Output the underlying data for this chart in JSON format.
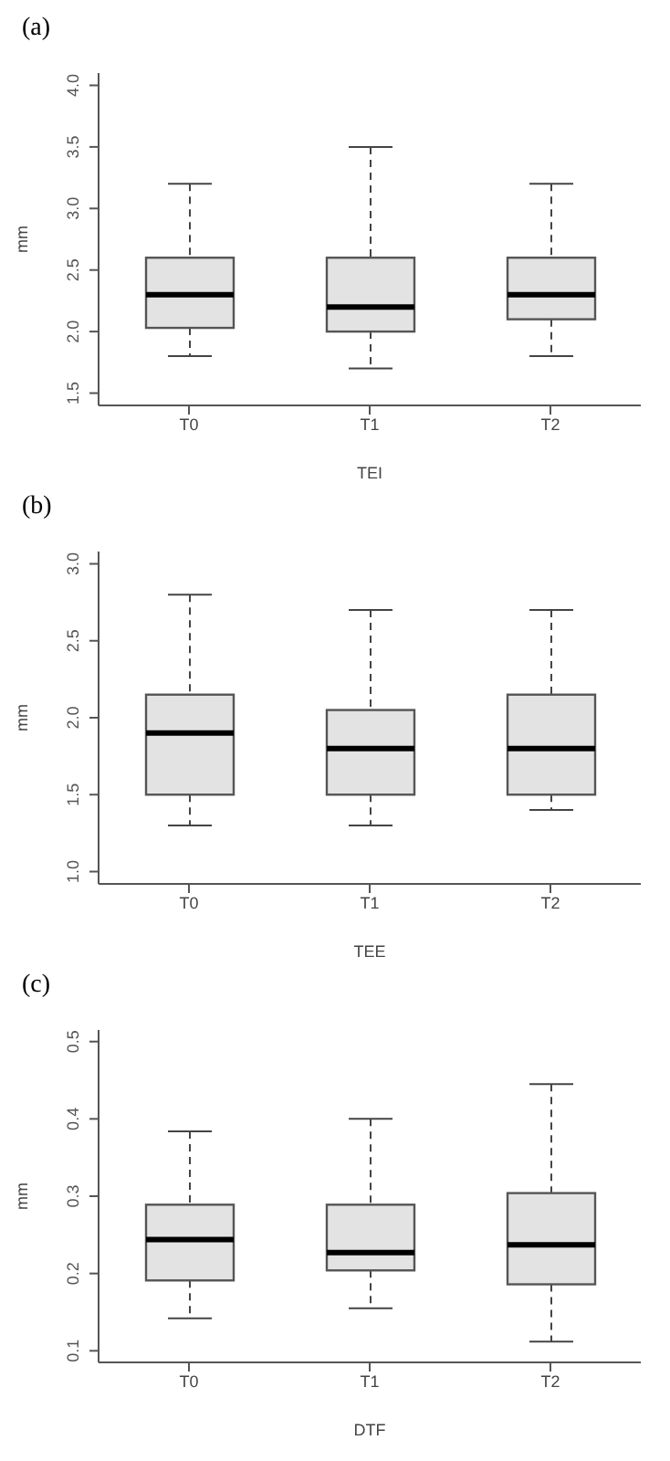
{
  "chart_data": [
    {
      "type": "box",
      "title": "(a)",
      "xlabel": "TEI",
      "ylabel": "mm",
      "color": "#e3e3e3",
      "categories": [
        "T0",
        "T1",
        "T2"
      ],
      "boxes": [
        {
          "low": 1.8,
          "q1": 2.03,
          "median": 2.3,
          "q3": 2.6,
          "high": 3.2
        },
        {
          "low": 1.7,
          "q1": 2.0,
          "median": 2.2,
          "q3": 2.6,
          "high": 3.5
        },
        {
          "low": 1.8,
          "q1": 2.1,
          "median": 2.3,
          "q3": 2.6,
          "high": 3.2
        }
      ],
      "ylim": [
        1.4,
        4.1
      ],
      "yticks": [
        1.5,
        {
          "value": 2,
          "label": "2.0"
        },
        2.5,
        {
          "value": 3,
          "label": "3.0"
        },
        3.5,
        {
          "value": 4,
          "label": "4.0"
        }
      ]
    },
    {
      "type": "box",
      "title": "(b)",
      "xlabel": "TEE",
      "ylabel": "mm",
      "color": "#e3e3e3",
      "categories": [
        "T0",
        "T1",
        "T2"
      ],
      "boxes": [
        {
          "low": 1.3,
          "q1": 1.5,
          "median": 1.9,
          "q3": 2.15,
          "high": 2.8
        },
        {
          "low": 1.3,
          "q1": 1.5,
          "median": 1.8,
          "q3": 2.05,
          "high": 2.7
        },
        {
          "low": 1.4,
          "q1": 1.5,
          "median": 1.8,
          "q3": 2.15,
          "high": 2.7
        }
      ],
      "ylim": [
        0.92,
        3.08
      ],
      "yticks": [
        {
          "value": 1,
          "label": "1.0"
        },
        1.5,
        {
          "value": 2,
          "label": "2.0"
        },
        2.5,
        {
          "value": 3,
          "label": "3.0"
        }
      ]
    },
    {
      "type": "box",
      "title": "(c)",
      "xlabel": "DTF",
      "ylabel": "mm",
      "color": "#e3e3e3",
      "categories": [
        "T0",
        "T1",
        "T2"
      ],
      "boxes": [
        {
          "low": 0.142,
          "q1": 0.191,
          "median": 0.244,
          "q3": 0.289,
          "high": 0.384
        },
        {
          "low": 0.155,
          "q1": 0.204,
          "median": 0.227,
          "q3": 0.289,
          "high": 0.4
        },
        {
          "low": 0.112,
          "q1": 0.186,
          "median": 0.237,
          "q3": 0.304,
          "high": 0.445
        }
      ],
      "ylim": [
        0.085,
        0.515
      ],
      "yticks": [
        0.1,
        0.2,
        0.3,
        0.4,
        0.5
      ]
    }
  ]
}
